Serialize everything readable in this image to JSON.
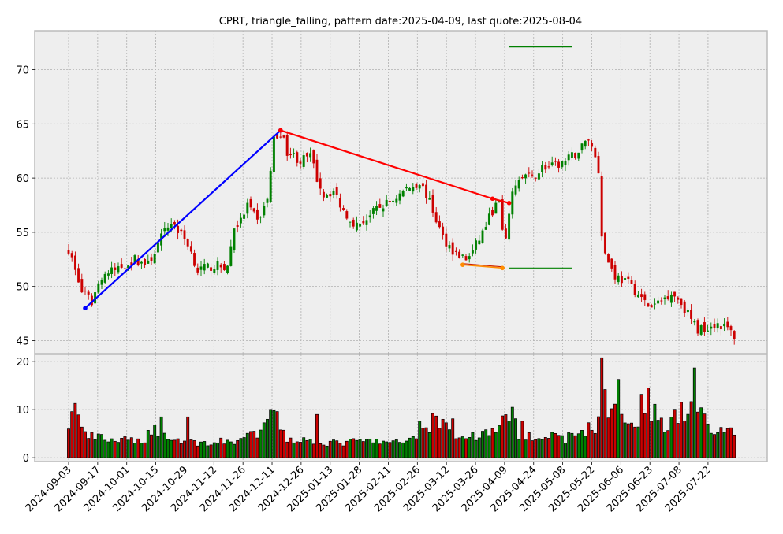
{
  "chart_data": {
    "type": "candlestick",
    "title": "CPRT, triangle_falling, pattern date:2025-04-09, last quote:2025-08-04",
    "price_axis": {
      "ylim": [
        43.8,
        73.6
      ],
      "ticks": [
        45,
        50,
        55,
        60,
        65,
        70
      ]
    },
    "volume_axis": {
      "ylim": [
        -0.8,
        21.5
      ],
      "ticks": [
        0,
        10,
        20
      ]
    },
    "x_tick_labels": [
      "2024-09-03",
      "2024-09-17",
      "2024-10-01",
      "2024-10-15",
      "2024-10-29",
      "2024-11-12",
      "2024-11-26",
      "2024-12-11",
      "2024-12-26",
      "2025-01-13",
      "2025-01-28",
      "2025-02-11",
      "2025-02-26",
      "2025-03-12",
      "2025-03-26",
      "2025-04-09",
      "2025-04-24",
      "2025-05-08",
      "2025-05-22",
      "2025-06-06",
      "2025-06-23",
      "2025-07-08",
      "2025-07-22"
    ],
    "grid": true,
    "colors": {
      "up": "#008000",
      "down": "#cc0000",
      "background": "#eeeeee",
      "upper_line": "#ff0000",
      "lower_line": "#ff8c00",
      "rise_line": "#0000ff",
      "target_line": "#008000"
    },
    "price_waypoints": [
      [
        0,
        53.5
      ],
      [
        4,
        49.5
      ],
      [
        7,
        48.6
      ],
      [
        10,
        51.0
      ],
      [
        14,
        51.5
      ],
      [
        20,
        52.5
      ],
      [
        24,
        52.0
      ],
      [
        28,
        54.5
      ],
      [
        31,
        56.0
      ],
      [
        33,
        55.2
      ],
      [
        36,
        54.0
      ],
      [
        39,
        51.5
      ],
      [
        44,
        51.9
      ],
      [
        48,
        51.8
      ],
      [
        50,
        55.5
      ],
      [
        52,
        56.0
      ],
      [
        54,
        57.5
      ],
      [
        57,
        56.0
      ],
      [
        60,
        58.0
      ],
      [
        62,
        63.5
      ],
      [
        64,
        64.2
      ],
      [
        66,
        62.5
      ],
      [
        70,
        61.6
      ],
      [
        73,
        62.0
      ],
      [
        75,
        60.0
      ],
      [
        77,
        58.5
      ],
      [
        80,
        58.8
      ],
      [
        83,
        57.0
      ],
      [
        87,
        55.6
      ],
      [
        90,
        56.3
      ],
      [
        94,
        57.3
      ],
      [
        98,
        58.0
      ],
      [
        102,
        59.0
      ],
      [
        106,
        59.6
      ],
      [
        108,
        58.5
      ],
      [
        110,
        57.0
      ],
      [
        113,
        54.5
      ],
      [
        117,
        53.0
      ],
      [
        120,
        52.5
      ],
      [
        122,
        53.2
      ],
      [
        125,
        55.0
      ],
      [
        128,
        57.0
      ],
      [
        130,
        57.8
      ],
      [
        131,
        55.0
      ],
      [
        132,
        54.0
      ],
      [
        133,
        57.0
      ],
      [
        135,
        59.6
      ],
      [
        138,
        60.2
      ],
      [
        140,
        60.0
      ],
      [
        143,
        61.0
      ],
      [
        146,
        61.0
      ],
      [
        150,
        61.5
      ],
      [
        154,
        62.5
      ],
      [
        157,
        63.7
      ],
      [
        159,
        62.0
      ],
      [
        160,
        60.7
      ],
      [
        161,
        55.0
      ],
      [
        162,
        53.0
      ],
      [
        165,
        51.0
      ],
      [
        169,
        50.3
      ],
      [
        171,
        49.7
      ],
      [
        173,
        48.8
      ],
      [
        176,
        48.0
      ],
      [
        179,
        48.7
      ],
      [
        182,
        49.5
      ],
      [
        185,
        48.5
      ],
      [
        188,
        47.0
      ],
      [
        190,
        46.0
      ],
      [
        193,
        46.3
      ],
      [
        196,
        46.6
      ],
      [
        199,
        46.1
      ],
      [
        200,
        45.8
      ],
      [
        201,
        45.4
      ]
    ],
    "volume_waypoints": [
      [
        0,
        7.0
      ],
      [
        2,
        10.0
      ],
      [
        5,
        4.5
      ],
      [
        10,
        4.0
      ],
      [
        15,
        3.5
      ],
      [
        22,
        3.5
      ],
      [
        26,
        6.0
      ],
      [
        30,
        4.0
      ],
      [
        40,
        3.0
      ],
      [
        50,
        3.5
      ],
      [
        58,
        5.0
      ],
      [
        62,
        9.5
      ],
      [
        66,
        4.0
      ],
      [
        80,
        3.0
      ],
      [
        90,
        3.5
      ],
      [
        100,
        3.0
      ],
      [
        108,
        6.0
      ],
      [
        112,
        8.0
      ],
      [
        118,
        4.0
      ],
      [
        126,
        5.0
      ],
      [
        130,
        7.0
      ],
      [
        134,
        8.0
      ],
      [
        136,
        5.0
      ],
      [
        150,
        4.0
      ],
      [
        160,
        7.0
      ],
      [
        161,
        20.5
      ],
      [
        163,
        10.0
      ],
      [
        170,
        7.0
      ],
      [
        175,
        10.5
      ],
      [
        180,
        7.0
      ],
      [
        186,
        10.0
      ],
      [
        190,
        9.0
      ],
      [
        195,
        6.0
      ],
      [
        201,
        5.5
      ]
    ],
    "volume_spikes": {
      "2": 11.3,
      "28": 8.5,
      "36": 8.5,
      "60": 8.0,
      "62": 9.8,
      "63": 9.6,
      "75": 9.0,
      "106": 7.6,
      "110": 9.2,
      "116": 8.1,
      "131": 8.7,
      "134": 10.5,
      "137": 7.6,
      "161": 20.8,
      "162": 14.2,
      "166": 16.3,
      "173": 13.2,
      "175": 14.5,
      "189": 18.7,
      "191": 10.4
    },
    "triangle": {
      "rise_line": [
        {
          "index": 5,
          "price": 48.0
        },
        {
          "index": 64,
          "price": 64.4
        }
      ],
      "upper_line": [
        {
          "index": 64,
          "price": 64.4
        },
        {
          "index": 128,
          "price": 58.1
        },
        {
          "index": 133,
          "price": 57.7
        }
      ],
      "lower_line": [
        {
          "index": 119,
          "price": 52.0
        },
        {
          "index": 131,
          "price": 51.7
        }
      ],
      "targets": [
        {
          "from_index": 133,
          "to_index": 152,
          "price": 72.1
        },
        {
          "from_index": 133,
          "to_index": 152,
          "price": 51.7
        }
      ]
    }
  }
}
